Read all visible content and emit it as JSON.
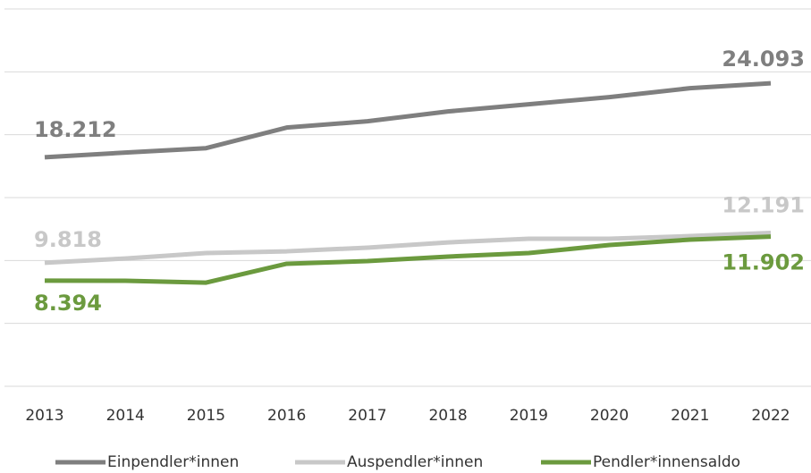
{
  "chart_data": {
    "type": "line",
    "categories": [
      "2013",
      "2014",
      "2015",
      "2016",
      "2017",
      "2018",
      "2019",
      "2020",
      "2021",
      "2022"
    ],
    "series": [
      {
        "name": "Einpendler*innen",
        "color": "#7f7f7f",
        "values": [
          18212,
          18580,
          18930,
          20570,
          21070,
          21850,
          22420,
          22990,
          23700,
          24093
        ],
        "value_labels": [
          "18.212",
          null,
          null,
          null,
          null,
          null,
          null,
          null,
          null,
          "24.093"
        ]
      },
      {
        "name": "Auspendler*innen",
        "color": "#c8c8c8",
        "values": [
          9818,
          10160,
          10590,
          10730,
          11020,
          11440,
          11730,
          11730,
          11940,
          12191
        ],
        "value_labels": [
          "9.818",
          null,
          null,
          null,
          null,
          null,
          null,
          null,
          null,
          "12.191"
        ]
      },
      {
        "name": "Pendler*innensaldo",
        "color": "#6b9a3e",
        "values": [
          8394,
          8390,
          8240,
          9740,
          9950,
          10310,
          10590,
          11230,
          11660,
          11902
        ],
        "value_labels": [
          "8.394",
          null,
          null,
          null,
          null,
          null,
          null,
          null,
          null,
          "11.902"
        ]
      }
    ],
    "ylim": [
      0,
      30000
    ],
    "yticks": [
      0,
      5000,
      10000,
      15000,
      20000,
      25000,
      30000
    ],
    "grid": true,
    "legend": "bottom"
  }
}
